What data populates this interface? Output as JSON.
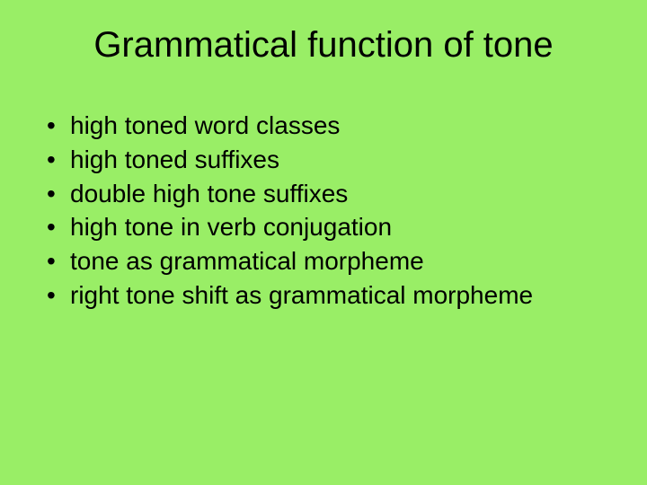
{
  "slide": {
    "background_color": "#99ee66",
    "text_color": "#000000",
    "title": "Grammatical function of tone",
    "title_fontsize": 40,
    "body_fontsize": 28,
    "bullets": [
      {
        "text": "high toned word classes"
      },
      {
        "text": "high toned suffixes"
      },
      {
        "text": "double high tone suffixes"
      },
      {
        "text": "high tone in verb conjugation"
      },
      {
        "text": "tone as grammatical morpheme"
      },
      {
        "text": "right tone shift as grammatical morpheme"
      }
    ]
  }
}
